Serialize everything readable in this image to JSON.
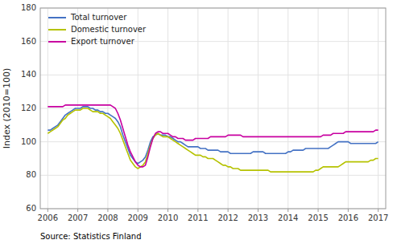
{
  "chart_data": {
    "type": "line",
    "ylabel": "Index (2010=100)",
    "source": "Source: Statistics Finland",
    "xlim": [
      2005.75,
      2017.25
    ],
    "xticks": [
      2006,
      2007,
      2008,
      2009,
      2010,
      2011,
      2012,
      2013,
      2014,
      2015,
      2016,
      2017
    ],
    "ylim": [
      60,
      180
    ],
    "yticks": [
      60,
      80,
      100,
      120,
      140,
      160,
      180
    ],
    "grid": true,
    "legend": "upper left",
    "x": [
      2006,
      2006.0833333333,
      2006.1666666667,
      2006.25,
      2006.3333333333,
      2006.4166666667,
      2006.5,
      2006.5833333333,
      2006.6666666667,
      2006.75,
      2006.8333333333,
      2006.9166666667,
      2007,
      2007.0833333333,
      2007.1666666667,
      2007.25,
      2007.3333333333,
      2007.4166666667,
      2007.5,
      2007.5833333333,
      2007.6666666667,
      2007.75,
      2007.8333333333,
      2007.9166666667,
      2008,
      2008.0833333333,
      2008.1666666667,
      2008.25,
      2008.3333333333,
      2008.4166666667,
      2008.5,
      2008.5833333333,
      2008.6666666667,
      2008.75,
      2008.8333333333,
      2008.9166666667,
      2009,
      2009.0833333333,
      2009.1666666667,
      2009.25,
      2009.3333333333,
      2009.4166666667,
      2009.5,
      2009.5833333333,
      2009.6666666667,
      2009.75,
      2009.8333333333,
      2009.9166666667,
      2010,
      2010.0833333333,
      2010.1666666667,
      2010.25,
      2010.3333333333,
      2010.4166666667,
      2010.5,
      2010.5833333333,
      2010.6666666667,
      2010.75,
      2010.8333333333,
      2010.9166666667,
      2011,
      2011.0833333333,
      2011.1666666667,
      2011.25,
      2011.3333333333,
      2011.4166666667,
      2011.5,
      2011.5833333333,
      2011.6666666667,
      2011.75,
      2011.8333333333,
      2011.9166666667,
      2012,
      2012.0833333333,
      2012.1666666667,
      2012.25,
      2012.3333333333,
      2012.4166666667,
      2012.5,
      2012.5833333333,
      2012.6666666667,
      2012.75,
      2012.8333333333,
      2012.9166666667,
      2013,
      2013.0833333333,
      2013.1666666667,
      2013.25,
      2013.3333333333,
      2013.4166666667,
      2013.5,
      2013.5833333333,
      2013.6666666667,
      2013.75,
      2013.8333333333,
      2013.9166666667,
      2014,
      2014.0833333333,
      2014.1666666667,
      2014.25,
      2014.3333333333,
      2014.4166666667,
      2014.5,
      2014.5833333333,
      2014.6666666667,
      2014.75,
      2014.8333333333,
      2014.9166666667,
      2015,
      2015.0833333333,
      2015.1666666667,
      2015.25,
      2015.3333333333,
      2015.4166666667,
      2015.5,
      2015.5833333333,
      2015.6666666667,
      2015.75,
      2015.8333333333,
      2015.9166666667,
      2016,
      2016.0833333333,
      2016.1666666667,
      2016.25,
      2016.3333333333,
      2016.4166666667,
      2016.5,
      2016.5833333333,
      2016.6666666667,
      2016.75,
      2016.8333333333,
      2016.9166666667,
      2017
    ],
    "series": [
      {
        "name": "Total turnover",
        "color": "#4472c4",
        "values": [
          107,
          107,
          108,
          109,
          110,
          112,
          114,
          116,
          117,
          118,
          119,
          120,
          120,
          120,
          121,
          121,
          121,
          120,
          120,
          119,
          119,
          118,
          118,
          117,
          117,
          116,
          115,
          114,
          112,
          109,
          104,
          100,
          96,
          92,
          90,
          88,
          87,
          88,
          89,
          91,
          95,
          100,
          103,
          104,
          105,
          104,
          104,
          104,
          103,
          103,
          102,
          101,
          100,
          100,
          99,
          98,
          97,
          97,
          97,
          97,
          97,
          96,
          96,
          96,
          95,
          95,
          95,
          95,
          95,
          94,
          94,
          94,
          94,
          93,
          93,
          93,
          93,
          93,
          93,
          93,
          93,
          93,
          94,
          94,
          94,
          94,
          94,
          93,
          93,
          93,
          93,
          93,
          93,
          93,
          93,
          93,
          94,
          94,
          95,
          95,
          95,
          95,
          95,
          96,
          96,
          96,
          96,
          96,
          96,
          96,
          96,
          96,
          96,
          97,
          98,
          99,
          100,
          100,
          100,
          100,
          100,
          99,
          99,
          99,
          99,
          99,
          99,
          99,
          99,
          99,
          99,
          99,
          100
        ]
      },
      {
        "name": "Domestic turnover",
        "color": "#b5c200",
        "values": [
          105,
          106,
          107,
          108,
          109,
          111,
          113,
          114,
          116,
          117,
          118,
          119,
          119,
          119,
          120,
          120,
          120,
          119,
          118,
          118,
          118,
          117,
          117,
          116,
          115,
          114,
          112,
          110,
          108,
          105,
          101,
          97,
          93,
          89,
          87,
          85,
          84,
          85,
          86,
          88,
          93,
          98,
          102,
          104,
          105,
          104,
          103,
          103,
          103,
          102,
          101,
          100,
          99,
          98,
          97,
          96,
          95,
          94,
          93,
          92,
          92,
          92,
          91,
          91,
          90,
          90,
          90,
          89,
          88,
          87,
          86,
          86,
          85,
          85,
          84,
          84,
          84,
          83,
          83,
          83,
          83,
          83,
          83,
          83,
          83,
          83,
          83,
          83,
          83,
          82,
          82,
          82,
          82,
          82,
          82,
          82,
          82,
          82,
          82,
          82,
          82,
          82,
          82,
          82,
          82,
          82,
          82,
          83,
          83,
          84,
          85,
          85,
          85,
          85,
          85,
          85,
          85,
          86,
          87,
          88,
          88,
          88,
          88,
          88,
          88,
          88,
          88,
          88,
          88,
          89,
          89,
          90,
          90
        ]
      },
      {
        "name": "Export turnover",
        "color": "#c800a0",
        "values": [
          121,
          121,
          121,
          121,
          121,
          121,
          121,
          122,
          122,
          122,
          122,
          122,
          122,
          122,
          122,
          122,
          122,
          122,
          122,
          122,
          122,
          122,
          122,
          122,
          122,
          122,
          121,
          120,
          117,
          113,
          108,
          103,
          98,
          94,
          91,
          88,
          86,
          85,
          85,
          86,
          91,
          97,
          102,
          105,
          106,
          106,
          105,
          105,
          105,
          104,
          103,
          103,
          102,
          102,
          102,
          101,
          101,
          101,
          101,
          102,
          102,
          102,
          102,
          102,
          102,
          103,
          103,
          103,
          103,
          103,
          103,
          103,
          104,
          104,
          104,
          104,
          104,
          104,
          103,
          103,
          103,
          103,
          103,
          103,
          103,
          103,
          103,
          103,
          103,
          103,
          103,
          103,
          103,
          103,
          103,
          103,
          103,
          103,
          103,
          103,
          103,
          103,
          103,
          103,
          103,
          103,
          103,
          103,
          103,
          103,
          104,
          104,
          104,
          104,
          105,
          105,
          105,
          105,
          105,
          106,
          106,
          106,
          106,
          106,
          106,
          106,
          106,
          106,
          106,
          106,
          106,
          107,
          107
        ]
      }
    ]
  }
}
